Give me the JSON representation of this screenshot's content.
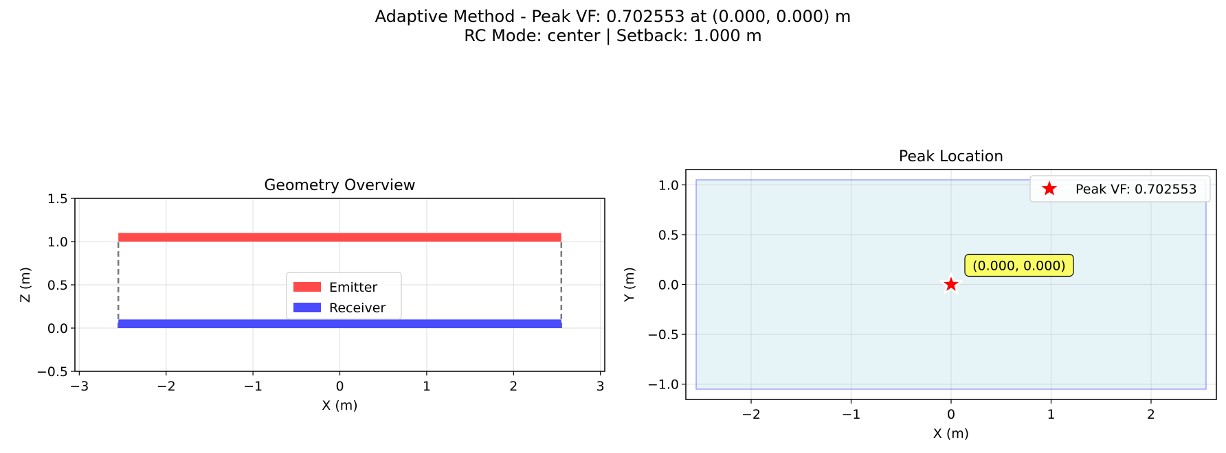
{
  "suptitle": {
    "line1": "Adaptive Method - Peak VF: 0.702553 at (0.000, 0.000) m",
    "line2": "RC Mode: center | Setback: 1.000 m"
  },
  "chart_data": [
    {
      "type": "geometry",
      "title": "Geometry Overview",
      "xlabel": "X (m)",
      "ylabel": "Z (m)",
      "xlim": [
        -3.05,
        3.05
      ],
      "ylim": [
        -0.5,
        1.5
      ],
      "xticks": [
        -3,
        -2,
        -1,
        0,
        1,
        2,
        3
      ],
      "yticks": [
        -0.5,
        0.0,
        0.5,
        1.0,
        1.5
      ],
      "grid": true,
      "legend_position": "center",
      "series": [
        {
          "name": "Emitter",
          "color": "#ff4a4a",
          "x": [
            -2.55,
            2.55
          ],
          "z": 1.0,
          "thickness": 0.1
        },
        {
          "name": "Receiver",
          "color": "#4a4aff",
          "x": [
            -2.55,
            2.55
          ],
          "z": 0.0,
          "thickness": 0.1
        }
      ],
      "connectors": [
        {
          "x": -2.55,
          "z": [
            0.0,
            1.0
          ],
          "color": "#777777",
          "style": "dashed"
        },
        {
          "x": 2.55,
          "z": [
            0.0,
            1.0
          ],
          "color": "#777777",
          "style": "dashed"
        }
      ]
    },
    {
      "type": "scatter",
      "title": "Peak Location",
      "xlabel": "X (m)",
      "ylabel": "Y (m)",
      "xlim": [
        -2.55,
        2.55
      ],
      "ylim": [
        -1.05,
        1.05
      ],
      "xticks": [
        -2,
        -1,
        0,
        1,
        2
      ],
      "yticks": [
        -1.0,
        -0.5,
        0.0,
        0.5,
        1.0
      ],
      "grid": true,
      "legend_position": "top-right",
      "region": {
        "x": [
          -2.55,
          2.55
        ],
        "y": [
          -1.05,
          1.05
        ],
        "fill": "#add8e6",
        "edge": "#0000ff"
      },
      "series": [
        {
          "name": "Peak VF: 0.702553",
          "color": "#ff0000",
          "marker": "star",
          "points": [
            [
              0.0,
              0.0
            ]
          ]
        }
      ],
      "annotation": {
        "text": "(0.000, 0.000)",
        "x": 0.0,
        "y": 0.0,
        "box_color": "#ffff33"
      }
    }
  ]
}
